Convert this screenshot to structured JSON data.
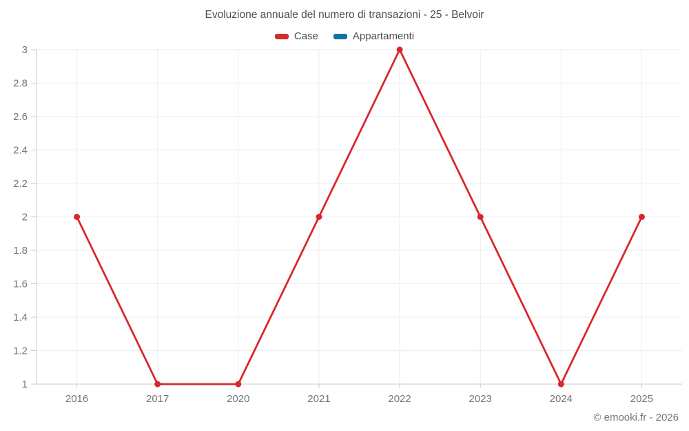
{
  "header": {
    "title": "Evoluzione annuale del numero di transazioni - 25 - Belvoir"
  },
  "legend": {
    "items": [
      {
        "label": "Case",
        "color": "#d7282d"
      },
      {
        "label": "Appartamenti",
        "color": "#1272a5"
      }
    ]
  },
  "footer": {
    "copyright": "© emooki.fr - 2026"
  },
  "chart_data": {
    "type": "line",
    "title": "Evoluzione annuale del numero di transazioni - 25 - Belvoir",
    "categories": [
      "2016",
      "2017",
      "2020",
      "2021",
      "2022",
      "2023",
      "2024",
      "2025"
    ],
    "series": [
      {
        "name": "Case",
        "color": "#d7282d",
        "values": [
          2,
          1,
          1,
          2,
          3,
          2,
          1,
          2
        ]
      },
      {
        "name": "Appartamenti",
        "color": "#1272a5",
        "values": []
      }
    ],
    "xlabel": "",
    "ylabel": "",
    "ylim": [
      1,
      3
    ],
    "yticks": [
      1,
      1.2,
      1.4,
      1.6,
      1.8,
      2,
      2.2,
      2.4,
      2.6,
      2.8,
      3
    ],
    "grid": true,
    "legend_position": "top",
    "marker": "circle",
    "colors": {
      "grid": "#ececec",
      "axis": "#c9c9c9",
      "tick_label": "#757575",
      "title": "#4c4c4c",
      "footer_text": "#757575"
    }
  }
}
